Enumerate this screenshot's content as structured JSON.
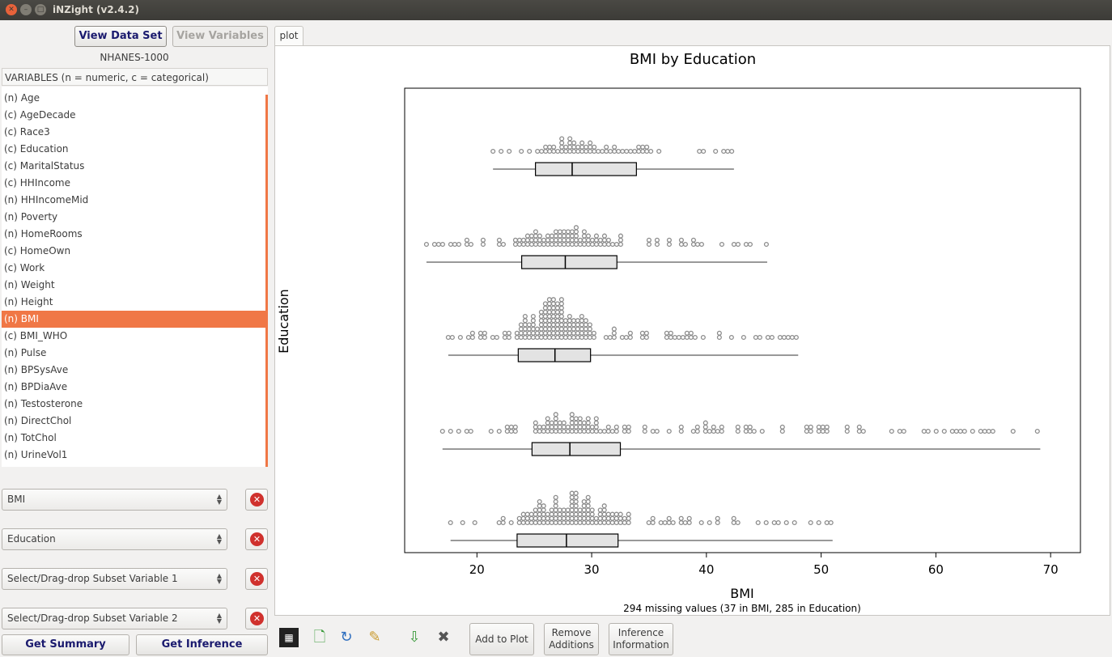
{
  "window": {
    "title": "iNZight (v2.4.2)"
  },
  "left": {
    "view_data_label": "View Data Set",
    "view_vars_label": "View Variables",
    "dataset_name": "NHANES-1000",
    "variables_header": "VARIABLES (n = numeric, c = categorical)",
    "variables": [
      "(n) Age",
      "(c) AgeDecade",
      "(c) Race3",
      "(c) Education",
      "(c) MaritalStatus",
      "(c) HHIncome",
      "(n) HHIncomeMid",
      "(n) Poverty",
      "(n) HomeRooms",
      "(c) HomeOwn",
      "(c) Work",
      "(n) Weight",
      "(n) Height",
      "(n) BMI",
      "(c) BMI_WHO",
      "(n) Pulse",
      "(n) BPSysAve",
      "(n) BPDiaAve",
      "(n) Testosterone",
      "(n) DirectChol",
      "(n) TotChol",
      "(n) UrineVol1"
    ],
    "selected_variable": "(n) BMI",
    "combos": [
      "BMI",
      "Education",
      "Select/Drag-drop Subset Variable 1",
      "Select/Drag-drop Subset Variable 2"
    ],
    "get_summary_label": "Get Summary",
    "get_inference_label": "Get Inference"
  },
  "tabs": [
    {
      "label": "plot"
    }
  ],
  "toolbar": {
    "add_to_plot_label": "Add to Plot",
    "remove_additions_line1": "Remove",
    "remove_additions_line2": "Additions",
    "inference_info_line1": "Inference",
    "inference_info_line2": "Information",
    "icons": [
      "new-window-icon",
      "new-plot-icon",
      "refresh-icon",
      "edit-icon",
      "export-icon",
      "delete-icon"
    ]
  },
  "chart_data": {
    "type": "box-dot",
    "title": "BMI by Education",
    "xlabel": "BMI",
    "ylabel": "Education",
    "footnote": "294 missing values (37 in BMI, 285 in Education)",
    "xlim": [
      13.7,
      72.6
    ],
    "xticks": [
      20,
      30,
      40,
      50,
      60,
      70
    ],
    "groups": [
      {
        "min": 21.4,
        "q1": 25.1,
        "median": 28.3,
        "q3": 33.9,
        "max": 42.4,
        "max_stack": 4
      },
      {
        "min": 15.6,
        "q1": 23.9,
        "median": 27.7,
        "q3": 32.2,
        "max": 45.3,
        "max_stack": 6
      },
      {
        "min": 17.5,
        "q1": 23.6,
        "median": 26.8,
        "q3": 29.9,
        "max": 48.0,
        "max_stack": 11
      },
      {
        "min": 17.0,
        "q1": 24.8,
        "median": 28.1,
        "q3": 32.5,
        "max": 69.1,
        "max_stack": 6
      },
      {
        "min": 17.7,
        "q1": 23.5,
        "median": 27.8,
        "q3": 32.3,
        "max": 51.0,
        "max_stack": 9
      }
    ],
    "colors": {
      "point": "#8c8c8c",
      "box_fill": "#e3e3e3",
      "box_stroke": "#000000",
      "selected": "#f07746"
    }
  }
}
